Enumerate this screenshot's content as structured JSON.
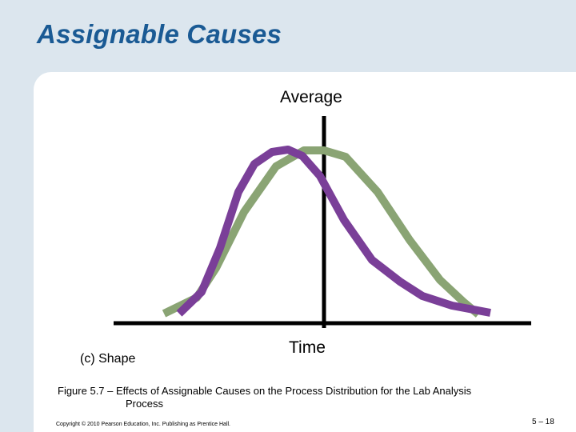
{
  "slide": {
    "title": "Assignable Causes",
    "caption_line1": "Figure 5.7 – Effects of Assignable Causes on the Process Distribution for the Lab Analysis",
    "caption_line2": "Process",
    "copyright": "Copyright © 2010 Pearson Education, Inc. Publishing as Prentice Hall.",
    "page_number": "5 – 18"
  },
  "diagram": {
    "vertical_axis_label": "Average",
    "horizontal_axis_label": "Time",
    "panel_label": "(c) Shape",
    "colors": {
      "original_distribution": "#8aa474",
      "shifted_distribution": "#7a3f98",
      "axes": "#000000",
      "title": "#1a5a94",
      "background": "#dce6ee",
      "panel": "#ffffff"
    }
  }
}
